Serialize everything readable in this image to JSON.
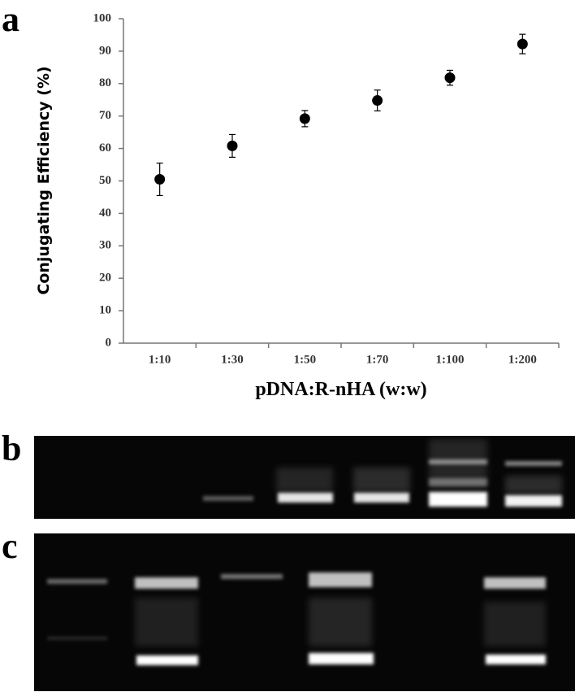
{
  "chart_data": {
    "type": "scatter",
    "panel_label": "a",
    "y_label": "Conjugating Efficiency (%)",
    "x_label": "pDNA:R-nHA (w:w)",
    "categories": [
      "1:10",
      "1:30",
      "1:50",
      "1:70",
      "1:100",
      "1:200"
    ],
    "values": [
      50.5,
      60.8,
      69.2,
      74.8,
      81.8,
      92.2
    ],
    "errors": [
      5,
      3.5,
      2.5,
      3.2,
      2.3,
      3
    ],
    "color": "#000000",
    "ylim": [
      0,
      100
    ],
    "yticks": [
      0,
      10,
      20,
      30,
      40,
      50,
      60,
      70,
      80,
      90,
      100
    ]
  },
  "panels": [
    {
      "label": "b"
    },
    {
      "label": "c"
    }
  ]
}
